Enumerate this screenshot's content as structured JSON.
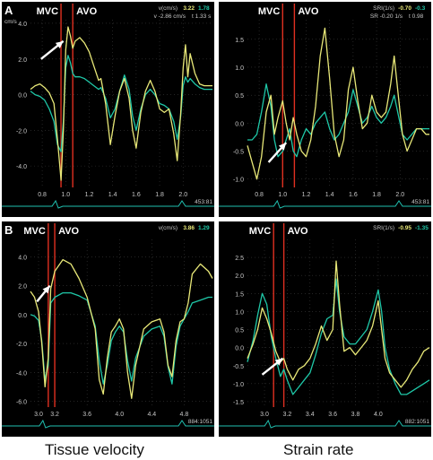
{
  "colors": {
    "background": "#000000",
    "trace_a": "#e8e878",
    "trace_b": "#1fc8a8",
    "marker": "#e03020",
    "axis_text": "#c8c8c8",
    "arrow": "#ffffff",
    "ecg": "#20c0b0"
  },
  "captions": {
    "left": "Tissue velocity",
    "right": "Strain rate"
  },
  "chart_data": [
    {
      "type": "line",
      "panel_label": "A",
      "marker_labels": [
        "MVC",
        "AVO"
      ],
      "markers_x": [
        0.96,
        1.06
      ],
      "header": {
        "unit": "v(cm/s)",
        "val_a": "3.22",
        "val_b": "1.78",
        "readout": "v -2.86 cm/s",
        "time": "t 1.33 s"
      },
      "corner_label": "cm/s",
      "frame_text": "453:81",
      "xlim": [
        0.7,
        2.25
      ],
      "ylim": [
        -5.2,
        4.2
      ],
      "xticks": [
        0.8,
        1.0,
        1.2,
        1.4,
        1.6,
        1.8,
        2.0
      ],
      "xtick_labels": [
        "0.8",
        "1.0",
        "1.2",
        "1.4",
        "1.6",
        "1.8",
        "2.0"
      ],
      "yticks": [
        4.0,
        2.0,
        0.0,
        -2.0,
        -4.0
      ],
      "ytick_labels": [
        "4.0",
        "2.0",
        "0.0",
        "-2.0",
        "-4.0"
      ],
      "arrow": {
        "from": [
          0.79,
          2.0
        ],
        "to": [
          0.98,
          3.0
        ]
      },
      "series": [
        {
          "x": [
            0.7,
            0.74,
            0.78,
            0.82,
            0.86,
            0.9,
            0.93,
            0.96,
            0.98,
            1.0,
            1.02,
            1.04,
            1.06,
            1.08,
            1.12,
            1.16,
            1.2,
            1.24,
            1.28,
            1.3,
            1.34,
            1.38,
            1.42,
            1.46,
            1.5,
            1.54,
            1.57,
            1.6,
            1.64,
            1.68,
            1.72,
            1.76,
            1.8,
            1.84,
            1.88,
            1.92,
            1.95,
            1.98,
            2.0,
            2.02,
            2.04,
            2.06,
            2.1,
            2.14,
            2.18,
            2.22,
            2.25
          ],
          "y": [
            0.3,
            0.5,
            0.6,
            0.4,
            0.1,
            -0.5,
            -2.5,
            -4.8,
            -2.0,
            2.5,
            3.8,
            3.3,
            2.6,
            3.0,
            3.2,
            2.9,
            2.4,
            1.6,
            0.8,
            0.9,
            -0.5,
            -2.8,
            -1.2,
            0.2,
            0.9,
            -0.2,
            -2.0,
            -3.0,
            -1.0,
            0.2,
            0.8,
            0.2,
            -0.8,
            -1.0,
            -0.8,
            -2.2,
            -3.7,
            -1.0,
            1.5,
            2.8,
            1.0,
            2.3,
            1.2,
            0.6,
            0.5,
            0.5,
            0.5
          ]
        },
        {
          "x": [
            0.7,
            0.74,
            0.78,
            0.82,
            0.86,
            0.9,
            0.93,
            0.96,
            0.98,
            1.0,
            1.02,
            1.04,
            1.06,
            1.08,
            1.12,
            1.16,
            1.2,
            1.24,
            1.28,
            1.3,
            1.34,
            1.38,
            1.42,
            1.46,
            1.5,
            1.54,
            1.57,
            1.6,
            1.64,
            1.68,
            1.72,
            1.76,
            1.8,
            1.84,
            1.88,
            1.92,
            1.95,
            1.98,
            2.0,
            2.02,
            2.04,
            2.06,
            2.1,
            2.14,
            2.18,
            2.22,
            2.25
          ],
          "y": [
            0.2,
            0.0,
            -0.1,
            -0.3,
            -0.8,
            -1.5,
            -2.8,
            -3.2,
            -1.5,
            1.5,
            2.2,
            1.8,
            1.2,
            1.0,
            1.0,
            0.9,
            0.7,
            0.5,
            0.3,
            0.4,
            -0.2,
            -1.3,
            -0.8,
            0.2,
            1.1,
            0.3,
            -1.2,
            -2.0,
            -0.8,
            0.0,
            0.3,
            0.0,
            -0.5,
            -0.6,
            -0.8,
            -1.5,
            -2.5,
            -1.2,
            0.5,
            1.0,
            0.7,
            0.9,
            0.6,
            0.4,
            0.3,
            0.3,
            0.3
          ]
        }
      ]
    },
    {
      "type": "line",
      "panel_label": "",
      "marker_labels": [
        "MVC",
        "AVO"
      ],
      "markers_x": [
        1.0,
        1.1
      ],
      "header": {
        "unit": "SRI(1/s)",
        "val_a": "-0.70",
        "val_b": "-0.3",
        "readout": "SR -0.20 1/s",
        "time": "t 0.98"
      },
      "corner_label": "",
      "frame_text": "453:81",
      "xlim": [
        0.7,
        2.25
      ],
      "ylim": [
        -1.15,
        1.85
      ],
      "xticks": [
        0.8,
        1.0,
        1.2,
        1.4,
        1.6,
        1.8,
        2.0
      ],
      "xtick_labels": [
        "0.8",
        "1.0",
        "1.2",
        "1.4",
        "1.6",
        "1.8",
        "2.0"
      ],
      "yticks": [
        1.5,
        1.0,
        0.5,
        0.0,
        -0.5,
        -1.0
      ],
      "ytick_labels": [
        "1.5",
        "1.0",
        "0.5",
        "0.0",
        "-0.5",
        "-1.0"
      ],
      "arrow": {
        "from": [
          0.88,
          -0.7
        ],
        "to": [
          1.03,
          -0.35
        ]
      },
      "series": [
        {
          "x": [
            0.7,
            0.74,
            0.78,
            0.82,
            0.86,
            0.9,
            0.93,
            0.96,
            1.0,
            1.03,
            1.06,
            1.09,
            1.12,
            1.16,
            1.2,
            1.24,
            1.28,
            1.32,
            1.36,
            1.4,
            1.44,
            1.48,
            1.52,
            1.56,
            1.6,
            1.64,
            1.68,
            1.72,
            1.76,
            1.8,
            1.84,
            1.88,
            1.92,
            1.95,
            1.98,
            2.02,
            2.06,
            2.1,
            2.14,
            2.18,
            2.22,
            2.25
          ],
          "y": [
            -0.4,
            -0.7,
            -1.0,
            -0.6,
            0.2,
            0.5,
            -0.2,
            0.1,
            0.4,
            0.0,
            -0.3,
            0.1,
            -0.2,
            -0.5,
            -0.6,
            -0.3,
            0.3,
            1.2,
            1.7,
            0.8,
            -0.2,
            -0.6,
            -0.3,
            0.6,
            1.0,
            0.4,
            -0.1,
            0.0,
            0.5,
            0.2,
            0.1,
            0.2,
            0.7,
            1.2,
            0.6,
            -0.2,
            -0.5,
            -0.3,
            -0.1,
            -0.1,
            -0.2,
            -0.2
          ]
        },
        {
          "x": [
            0.7,
            0.74,
            0.78,
            0.82,
            0.86,
            0.9,
            0.93,
            0.96,
            1.0,
            1.03,
            1.06,
            1.09,
            1.12,
            1.16,
            1.2,
            1.24,
            1.28,
            1.32,
            1.36,
            1.4,
            1.44,
            1.48,
            1.52,
            1.56,
            1.6,
            1.64,
            1.68,
            1.72,
            1.76,
            1.8,
            1.84,
            1.88,
            1.92,
            1.95,
            1.98,
            2.02,
            2.06,
            2.1,
            2.14,
            2.18,
            2.22,
            2.25
          ],
          "y": [
            -0.3,
            -0.3,
            -0.2,
            0.2,
            0.7,
            0.3,
            -0.3,
            -0.6,
            -0.5,
            -0.3,
            -0.1,
            -0.5,
            -0.6,
            -0.3,
            -0.1,
            -0.2,
            0.0,
            0.1,
            0.2,
            -0.1,
            -0.3,
            -0.2,
            0.0,
            0.2,
            0.6,
            0.3,
            0.0,
            0.1,
            0.3,
            0.1,
            0.0,
            0.1,
            0.3,
            0.5,
            0.2,
            -0.2,
            -0.3,
            -0.2,
            -0.1,
            -0.1,
            -0.1,
            -0.1
          ]
        }
      ]
    },
    {
      "type": "line",
      "panel_label": "B",
      "marker_labels": [
        "MVC",
        "AVO"
      ],
      "markers_x": [
        3.12,
        3.2
      ],
      "header": {
        "unit": "v(cm/s)",
        "val_a": "3.86",
        "val_b": "1.29",
        "readout": "",
        "time": ""
      },
      "corner_label": "",
      "frame_text": "884:1051",
      "xlim": [
        2.9,
        5.15
      ],
      "ylim": [
        -6.4,
        5.2
      ],
      "xticks": [
        3.0,
        3.2,
        3.6,
        4.0,
        4.4,
        4.8
      ],
      "xtick_labels": [
        "3.0",
        "3.2",
        "3.6",
        "4.0",
        "4.4",
        "4.8"
      ],
      "yticks": [
        4.0,
        2.0,
        0.0,
        -2.0,
        -4.0,
        -6.0
      ],
      "ytick_labels": [
        "4.0",
        "2.0",
        "0.0",
        "-2.0",
        "-4.0",
        "-6.0"
      ],
      "arrow": {
        "from": [
          2.98,
          0.9
        ],
        "to": [
          3.14,
          2.0
        ]
      },
      "series": [
        {
          "x": [
            2.9,
            2.95,
            3.0,
            3.04,
            3.08,
            3.12,
            3.15,
            3.2,
            3.3,
            3.4,
            3.5,
            3.6,
            3.7,
            3.75,
            3.8,
            3.85,
            3.9,
            3.95,
            4.0,
            4.05,
            4.1,
            4.15,
            4.2,
            4.3,
            4.4,
            4.5,
            4.55,
            4.6,
            4.65,
            4.7,
            4.75,
            4.8,
            4.85,
            4.9,
            5.0,
            5.1,
            5.15
          ],
          "y": [
            1.6,
            1.2,
            0.2,
            -2.0,
            -5.0,
            -3.0,
            1.8,
            3.0,
            3.8,
            3.5,
            2.5,
            1.2,
            -1.0,
            -4.5,
            -5.5,
            -3.0,
            -1.2,
            -0.8,
            -0.3,
            -1.0,
            -4.0,
            -5.8,
            -3.5,
            -1.0,
            -0.5,
            -0.3,
            -1.2,
            -3.5,
            -4.3,
            -1.8,
            -0.5,
            -0.3,
            0.8,
            2.8,
            3.5,
            3.0,
            2.5
          ]
        },
        {
          "x": [
            2.9,
            2.95,
            3.0,
            3.04,
            3.08,
            3.12,
            3.15,
            3.2,
            3.3,
            3.4,
            3.5,
            3.6,
            3.7,
            3.75,
            3.8,
            3.85,
            3.9,
            3.95,
            4.0,
            4.05,
            4.1,
            4.15,
            4.2,
            4.3,
            4.4,
            4.5,
            4.55,
            4.6,
            4.65,
            4.7,
            4.75,
            4.8,
            4.85,
            4.9,
            5.0,
            5.1,
            5.15
          ],
          "y": [
            0.0,
            -0.1,
            -0.4,
            -1.8,
            -4.5,
            -3.5,
            0.8,
            1.2,
            1.5,
            1.5,
            1.3,
            1.0,
            -0.8,
            -3.2,
            -4.8,
            -3.5,
            -1.8,
            -1.2,
            -0.8,
            -1.2,
            -3.2,
            -4.6,
            -3.0,
            -1.5,
            -1.0,
            -0.8,
            -1.5,
            -3.6,
            -4.8,
            -2.2,
            -0.8,
            -0.3,
            0.2,
            0.8,
            1.0,
            1.2,
            1.2
          ]
        }
      ]
    },
    {
      "type": "line",
      "panel_label": "",
      "marker_labels": [
        "MVC",
        "AVO"
      ],
      "markers_x": [
        3.08,
        3.17
      ],
      "header": {
        "unit": "SRI(1/s)",
        "val_a": "-0.95",
        "val_b": "-1.35",
        "readout": "",
        "time": ""
      },
      "corner_label": "",
      "frame_text": "882:1051",
      "xlim": [
        2.85,
        4.45
      ],
      "ylim": [
        -1.65,
        3.0
      ],
      "xticks": [
        3.0,
        3.2,
        3.4,
        3.6,
        3.8,
        4.0
      ],
      "xtick_labels": [
        "3.0",
        "3.2",
        "3.4",
        "3.6",
        "3.8",
        "4.0"
      ],
      "yticks": [
        2.5,
        2.0,
        1.5,
        1.0,
        0.5,
        0.0,
        -0.5,
        -1.0,
        -1.5
      ],
      "ytick_labels": [
        "2.5",
        "2.0",
        "1.5",
        "1.0",
        "0.5",
        "0.0",
        "-0.5",
        "-1.0",
        "-1.5"
      ],
      "arrow": {
        "from": [
          2.98,
          -0.75
        ],
        "to": [
          3.16,
          -0.3
        ]
      },
      "series": [
        {
          "x": [
            2.85,
            2.9,
            2.94,
            2.98,
            3.02,
            3.06,
            3.1,
            3.14,
            3.17,
            3.2,
            3.25,
            3.3,
            3.35,
            3.4,
            3.45,
            3.5,
            3.55,
            3.6,
            3.63,
            3.66,
            3.7,
            3.75,
            3.8,
            3.85,
            3.9,
            3.95,
            4.0,
            4.03,
            4.06,
            4.1,
            4.15,
            4.2,
            4.25,
            4.3,
            4.35,
            4.4,
            4.45
          ],
          "y": [
            -0.3,
            0.1,
            0.5,
            1.1,
            0.8,
            0.4,
            -0.1,
            -0.4,
            -0.3,
            -0.6,
            -0.9,
            -0.6,
            -0.5,
            -0.3,
            0.1,
            0.6,
            0.2,
            0.5,
            2.4,
            1.2,
            -0.1,
            0.0,
            -0.2,
            0.0,
            0.2,
            0.6,
            1.3,
            0.5,
            -0.3,
            -0.7,
            -0.9,
            -1.1,
            -0.9,
            -0.6,
            -0.4,
            -0.1,
            0.0
          ]
        },
        {
          "x": [
            2.85,
            2.9,
            2.94,
            2.98,
            3.02,
            3.06,
            3.1,
            3.14,
            3.17,
            3.2,
            3.25,
            3.3,
            3.35,
            3.4,
            3.45,
            3.5,
            3.55,
            3.6,
            3.63,
            3.66,
            3.7,
            3.75,
            3.8,
            3.85,
            3.9,
            3.95,
            4.0,
            4.03,
            4.06,
            4.1,
            4.15,
            4.2,
            4.25,
            4.3,
            4.35,
            4.4,
            4.45
          ],
          "y": [
            -0.4,
            0.2,
            0.9,
            1.5,
            1.2,
            0.3,
            -0.3,
            -0.8,
            -0.6,
            -0.9,
            -1.3,
            -1.1,
            -0.9,
            -0.7,
            -0.2,
            0.4,
            0.8,
            0.9,
            1.9,
            1.0,
            0.3,
            0.1,
            0.1,
            0.3,
            0.5,
            1.0,
            1.6,
            1.0,
            0.0,
            -0.6,
            -1.0,
            -1.3,
            -1.3,
            -1.2,
            -1.1,
            -1.0,
            -0.9
          ]
        }
      ]
    }
  ]
}
